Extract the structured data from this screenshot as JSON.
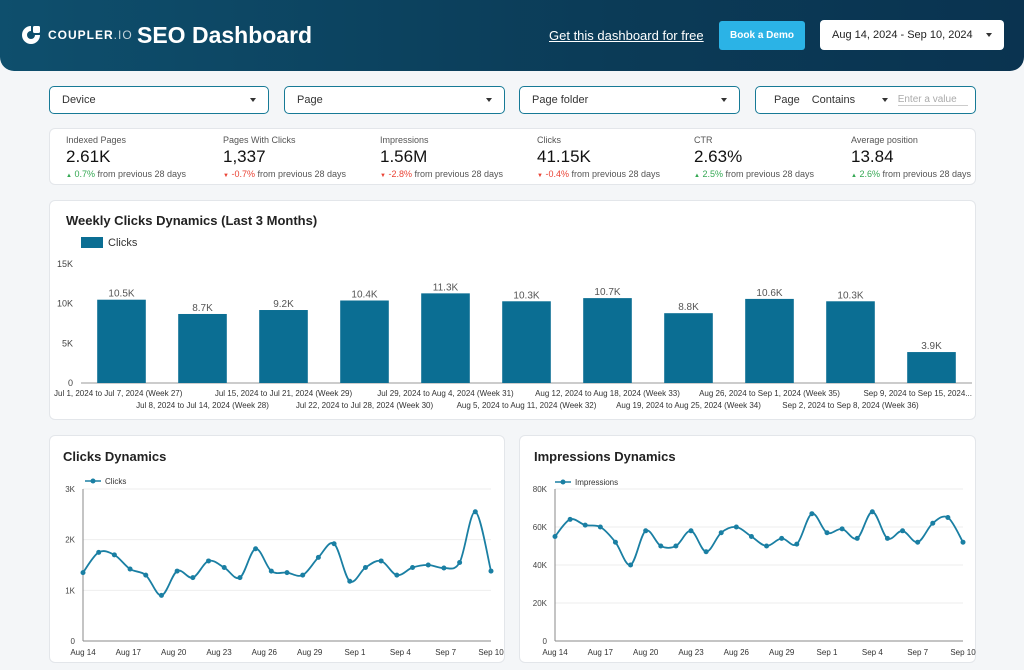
{
  "header": {
    "logo_text": "COUPLER",
    "logo_suffix": ".IO",
    "title": "SEO Dashboard",
    "get_link": "Get this dashboard for free",
    "demo_button": "Book a Demo",
    "date_range": "Aug 14, 2024 - Sep 10, 2024"
  },
  "filters": {
    "device": "Device",
    "page": "Page",
    "page_folder": "Page folder",
    "page_label": "Page",
    "operator": "Contains",
    "value_placeholder": "Enter a value"
  },
  "kpis": [
    {
      "label": "Indexed Pages",
      "value": "2.61K",
      "delta": "0.7%",
      "dir": "up",
      "suffix": "from previous 28 days"
    },
    {
      "label": "Pages With Clicks",
      "value": "1,337",
      "delta": "-0.7%",
      "dir": "down",
      "suffix": "from previous 28 days"
    },
    {
      "label": "Impressions",
      "value": "1.56M",
      "delta": "-2.8%",
      "dir": "down",
      "suffix": "from previous 28 days"
    },
    {
      "label": "Clicks",
      "value": "41.15K",
      "delta": "-0.4%",
      "dir": "down",
      "suffix": "from previous 28 days"
    },
    {
      "label": "CTR",
      "value": "2.63%",
      "delta": "2.5%",
      "dir": "up",
      "suffix": "from previous 28 days"
    },
    {
      "label": "Average position",
      "value": "13.84",
      "delta": "2.6%",
      "dir": "up",
      "suffix": "from previous 28 days"
    }
  ],
  "colors": {
    "bar": "#0b6e93",
    "line": "#1a7fa3",
    "up": "#34a853",
    "down": "#ea4335"
  },
  "chart_data": [
    {
      "type": "bar",
      "title": "Weekly Clicks Dynamics (Last 3 Months)",
      "legend": [
        "Clicks"
      ],
      "categories": [
        "Jul 1, 2024 to Jul 7, 2024 (Week 27)",
        "Jul 8, 2024 to Jul 14, 2024 (Week 28)",
        "Jul 15, 2024 to Jul 21, 2024 (Week 29)",
        "Jul 22, 2024 to Jul 28, 2024 (Week 30)",
        "Jul 29, 2024 to Aug 4, 2024 (Week 31)",
        "Aug 5, 2024 to Aug 11, 2024 (Week 32)",
        "Aug 12, 2024 to Aug 18, 2024 (Week 33)",
        "Aug 19, 2024 to Aug 25, 2024 (Week 34)",
        "Aug 26, 2024 to Sep 1, 2024 (Week 35)",
        "Sep 2, 2024 to Sep 8, 2024 (Week 36)",
        "Sep 9, 2024 to Sep 15, 2024..."
      ],
      "values": [
        10500,
        8700,
        9200,
        10400,
        11300,
        10300,
        10700,
        8800,
        10600,
        10300,
        3900
      ],
      "data_labels": [
        "10.5K",
        "8.7K",
        "9.2K",
        "10.4K",
        "11.3K",
        "10.3K",
        "10.7K",
        "8.8K",
        "10.6K",
        "10.3K",
        "3.9K"
      ],
      "ylim": [
        0,
        15000
      ],
      "yticks": [
        0,
        5000,
        10000,
        15000
      ],
      "ytick_labels": [
        "0",
        "5K",
        "10K",
        "15K"
      ]
    },
    {
      "type": "line",
      "title": "Clicks Dynamics",
      "legend": [
        "Clicks"
      ],
      "values": [
        1350,
        1750,
        1700,
        1420,
        1300,
        900,
        1380,
        1250,
        1580,
        1450,
        1250,
        1820,
        1380,
        1350,
        1300,
        1650,
        1920,
        1180,
        1450,
        1580,
        1300,
        1450,
        1500,
        1440,
        1550,
        2550,
        1380
      ],
      "xtick_labels": [
        "Aug 14",
        "Aug 17",
        "Aug 20",
        "Aug 23",
        "Aug 26",
        "Aug 29",
        "Sep 1",
        "Sep 4",
        "Sep 7",
        "Sep 10"
      ],
      "ylim": [
        0,
        3000
      ],
      "yticks": [
        0,
        1000,
        2000,
        3000
      ],
      "ytick_labels": [
        "0",
        "1K",
        "2K",
        "3K"
      ]
    },
    {
      "type": "line",
      "title": "Impressions Dynamics",
      "legend": [
        "Impressions"
      ],
      "values": [
        55000,
        64000,
        61000,
        60000,
        52000,
        40000,
        58000,
        50000,
        50000,
        58000,
        47000,
        57000,
        60000,
        55000,
        50000,
        54000,
        51000,
        67000,
        57000,
        59000,
        54000,
        68000,
        54000,
        58000,
        52000,
        62000,
        65000,
        52000
      ],
      "xtick_labels": [
        "Aug 14",
        "Aug 17",
        "Aug 20",
        "Aug 23",
        "Aug 26",
        "Aug 29",
        "Sep 1",
        "Sep 4",
        "Sep 7",
        "Sep 10"
      ],
      "ylim": [
        0,
        80000
      ],
      "yticks": [
        0,
        20000,
        40000,
        60000,
        80000
      ],
      "ytick_labels": [
        "0",
        "20K",
        "40K",
        "60K",
        "80K"
      ]
    }
  ]
}
